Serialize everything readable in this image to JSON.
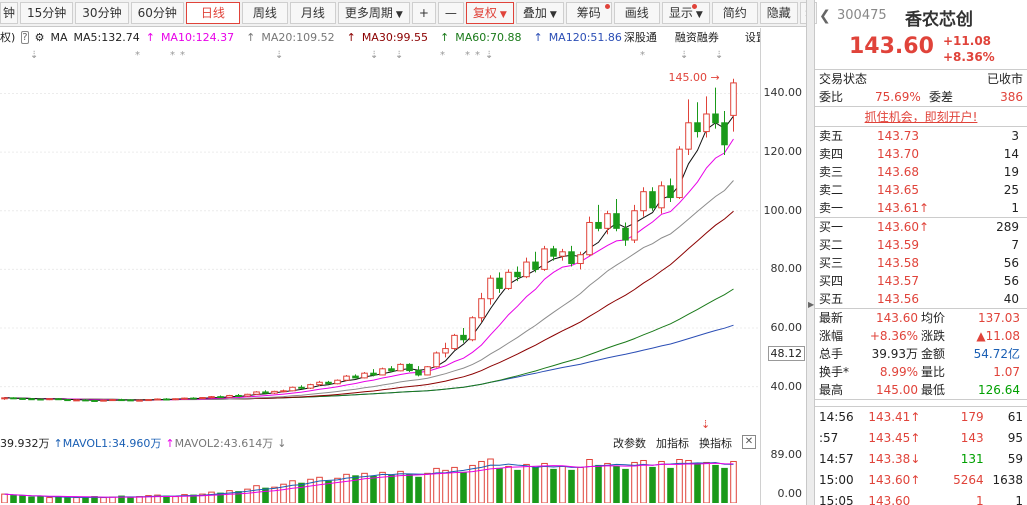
{
  "toolbar": {
    "periods": [
      "钟",
      "15分钟",
      "30分钟",
      "60分钟",
      "日线",
      "周线",
      "月线",
      "更多周期"
    ],
    "active_period": "日线",
    "tools": [
      "复权",
      "叠加",
      "筹码",
      "画线",
      "显示",
      "简约",
      "隐藏"
    ]
  },
  "ma": {
    "prefix": "权)",
    "ma": "MA",
    "ma5": "MA5:132.74",
    "ma10": "MA10:124.37",
    "ma20": "MA20:109.52",
    "ma30": "MA30:99.55",
    "ma60": "MA60:70.88",
    "ma120": "MA120:51.86",
    "hk": "深股通",
    "margin": "融资融券",
    "settings": "设置均线",
    "colors": {
      "ma5": "#111111",
      "ma10": "#e800e8",
      "ma20": "#8c8c8c",
      "ma30": "#8b0000",
      "ma60": "#1a7a1a",
      "ma120": "#2b4eb5"
    }
  },
  "vol": {
    "v1": "39.932万",
    "v2": "MAVOL1:34.960万",
    "v3": "MAVOL2:43.614万",
    "edit": "改参数",
    "add": "加指标",
    "swap": "换指标"
  },
  "yaxis": {
    "ticks": [
      "140.00",
      "120.00",
      "100.00",
      "80.00",
      "60.00",
      "40.00"
    ],
    "current": "48.12",
    "vol_ticks": [
      "89.00",
      "0.00"
    ]
  },
  "chart_data": {
    "type": "candlestick",
    "ylim": [
      30,
      148
    ],
    "high_label": "145.00",
    "candles": [
      [
        36,
        36.5,
        35.5,
        36.2
      ],
      [
        36.2,
        36.4,
        35.8,
        36
      ],
      [
        36,
        36.3,
        35.6,
        35.9
      ],
      [
        35.9,
        36.1,
        35.5,
        35.8
      ],
      [
        35.8,
        36,
        35.4,
        35.7
      ],
      [
        35.7,
        36,
        35.4,
        35.9
      ],
      [
        35.9,
        36.1,
        35.5,
        35.6
      ],
      [
        35.6,
        35.8,
        35.2,
        35.4
      ],
      [
        35.4,
        35.7,
        35.1,
        35.5
      ],
      [
        35.5,
        35.8,
        35.2,
        35.3
      ],
      [
        35.3,
        35.5,
        35,
        35.2
      ],
      [
        35.2,
        35.6,
        35,
        35.4
      ],
      [
        35.4,
        35.8,
        35.2,
        35.6
      ],
      [
        35.6,
        35.9,
        35.3,
        35.5
      ],
      [
        35.5,
        35.7,
        35.1,
        35.3
      ],
      [
        35.3,
        35.6,
        35,
        35.4
      ],
      [
        35.4,
        35.7,
        35.2,
        35.6
      ],
      [
        35.6,
        36,
        35.4,
        35.8
      ],
      [
        35.8,
        36.1,
        35.5,
        35.7
      ],
      [
        35.7,
        36,
        35.4,
        35.9
      ],
      [
        35.9,
        36.3,
        35.6,
        36.1
      ],
      [
        36.1,
        36.4,
        35.8,
        36
      ],
      [
        36,
        36.5,
        35.8,
        36.3
      ],
      [
        36.3,
        36.8,
        36,
        36.6
      ],
      [
        36.6,
        37,
        36.2,
        36.4
      ],
      [
        36.4,
        37.2,
        36.2,
        37
      ],
      [
        37,
        37.5,
        36.6,
        36.8
      ],
      [
        36.8,
        37.6,
        36.5,
        37.4
      ],
      [
        37.4,
        38.5,
        37.2,
        38.2
      ],
      [
        38.2,
        38.8,
        37.6,
        37.8
      ],
      [
        37.8,
        38.6,
        37.5,
        38.4
      ],
      [
        38.4,
        39,
        38,
        38.6
      ],
      [
        38.6,
        40,
        38.4,
        39.8
      ],
      [
        39.8,
        40.5,
        39.2,
        39.5
      ],
      [
        39.5,
        41,
        39.2,
        40.7
      ],
      [
        40.7,
        42,
        40.2,
        41.5
      ],
      [
        41.5,
        42,
        40.8,
        41
      ],
      [
        41,
        42.5,
        40.8,
        42.2
      ],
      [
        42.2,
        44,
        42,
        43.6
      ],
      [
        43.6,
        44.2,
        42.8,
        43
      ],
      [
        43,
        45,
        42.8,
        44.6
      ],
      [
        44.6,
        46,
        43.5,
        44
      ],
      [
        44,
        46.5,
        43.8,
        46.1
      ],
      [
        46.1,
        47,
        45,
        45.4
      ],
      [
        45.4,
        48,
        45.2,
        47.6
      ],
      [
        47.6,
        48,
        45,
        45.5
      ],
      [
        45.5,
        47,
        43.5,
        44
      ],
      [
        44,
        47,
        43.8,
        46.8
      ],
      [
        46.8,
        52,
        46.5,
        51.5
      ],
      [
        51.5,
        55,
        50,
        53
      ],
      [
        53,
        58,
        52.5,
        57.5
      ],
      [
        57.5,
        60,
        55,
        56
      ],
      [
        56,
        64,
        55.5,
        63.5
      ],
      [
        63.5,
        72,
        62,
        70
      ],
      [
        70,
        78,
        68,
        77
      ],
      [
        77,
        79,
        72,
        73.5
      ],
      [
        73.5,
        80,
        73,
        79
      ],
      [
        79,
        81,
        76,
        77.5
      ],
      [
        77.5,
        84,
        77,
        82.5
      ],
      [
        82.5,
        86,
        79,
        80
      ],
      [
        80,
        88,
        79.5,
        87
      ],
      [
        87,
        88,
        83,
        84.5
      ],
      [
        84.5,
        87,
        83,
        86
      ],
      [
        86,
        88,
        81,
        82
      ],
      [
        82,
        86,
        80,
        85
      ],
      [
        85,
        98,
        84.5,
        96
      ],
      [
        96,
        102,
        93,
        94
      ],
      [
        94,
        100,
        92,
        99
      ],
      [
        99,
        104,
        93,
        94
      ],
      [
        94,
        96,
        88,
        90
      ],
      [
        90,
        102,
        89,
        100
      ],
      [
        100,
        108,
        98,
        106.5
      ],
      [
        106.5,
        108,
        100,
        101
      ],
      [
        101,
        110,
        99,
        108.5
      ],
      [
        108.5,
        111,
        103,
        104.5
      ],
      [
        104.5,
        122,
        104,
        121
      ],
      [
        121,
        138,
        119,
        130
      ],
      [
        130,
        137,
        125,
        127
      ],
      [
        127,
        139,
        125,
        133
      ],
      [
        133,
        142,
        128,
        130
      ],
      [
        130,
        134,
        119,
        122.5
      ],
      [
        132.52,
        145,
        127,
        143.6
      ]
    ],
    "volumes": [
      18,
      15,
      14,
      12,
      13,
      11,
      12,
      10,
      11,
      12,
      13,
      11,
      12,
      14,
      12,
      13,
      15,
      16,
      14,
      13,
      17,
      16,
      18,
      22,
      20,
      25,
      23,
      28,
      35,
      30,
      32,
      38,
      45,
      40,
      48,
      52,
      44,
      50,
      58,
      55,
      60,
      54,
      62,
      56,
      64,
      58,
      52,
      60,
      70,
      66,
      72,
      62,
      76,
      84,
      89,
      70,
      74,
      66,
      78,
      72,
      80,
      68,
      74,
      66,
      72,
      88,
      76,
      80,
      74,
      68,
      82,
      86,
      72,
      84,
      70,
      88,
      86,
      78,
      82,
      76,
      70,
      84
    ]
  },
  "panel": {
    "code": "300475",
    "name": "香农芯创",
    "price": "143.60",
    "change": "+11.08",
    "change_pct": "+8.36%",
    "state_label": "交易状态",
    "state_value": "已收市",
    "wb_label": "委比",
    "wb_value": "75.69%",
    "wc_label": "委差",
    "wc_value": "386",
    "promo": "抓住机会，即刻开户!",
    "asks": [
      {
        "label": "卖五",
        "price": "143.73",
        "vol": "3"
      },
      {
        "label": "卖四",
        "price": "143.70",
        "vol": "14"
      },
      {
        "label": "卖三",
        "price": "143.68",
        "vol": "19"
      },
      {
        "label": "卖二",
        "price": "143.65",
        "vol": "25"
      },
      {
        "label": "卖一",
        "price": "143.61↑",
        "vol": "1"
      }
    ],
    "bids": [
      {
        "label": "买一",
        "price": "143.60↑",
        "vol": "289"
      },
      {
        "label": "买二",
        "price": "143.59",
        "vol": "7"
      },
      {
        "label": "买三",
        "price": "143.58",
        "vol": "56"
      },
      {
        "label": "买四",
        "price": "143.57",
        "vol": "56"
      },
      {
        "label": "买五",
        "price": "143.56",
        "vol": "40"
      }
    ],
    "stats": [
      [
        "最新",
        "143.60",
        "均价",
        "137.03"
      ],
      [
        "涨幅",
        "+8.36%",
        "涨跌",
        "▲11.08"
      ],
      [
        "总手",
        "39.93万",
        "金额",
        "54.72亿"
      ],
      [
        "换手*",
        "8.99%",
        "量比",
        "1.07"
      ],
      [
        "最高",
        "145.00",
        "最低",
        "126.64"
      ]
    ],
    "ticks": [
      [
        "14:56",
        "143.41↑",
        "179",
        "61"
      ],
      [
        ":57",
        "143.45↑",
        "143",
        "95"
      ],
      [
        "14:57",
        "143.38↓",
        "131",
        "59"
      ],
      [
        "15:00",
        "143.60↑",
        "5264",
        "1638"
      ],
      [
        "15:05",
        "143.60",
        "1",
        "1"
      ]
    ]
  }
}
